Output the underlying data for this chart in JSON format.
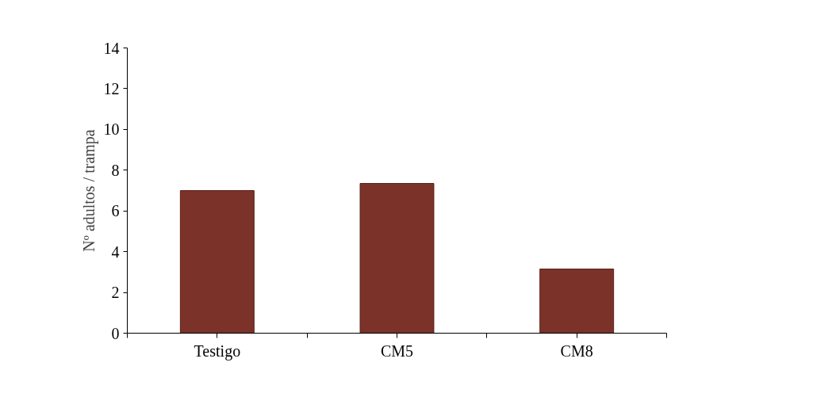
{
  "chart_data": {
    "type": "bar",
    "ylabel": "Nº adultos / trampa",
    "categories": [
      "Testigo",
      "CM5",
      "CM8"
    ],
    "values": [
      7.0,
      7.35,
      3.15
    ],
    "color": "#7b3229",
    "ylim": [
      0,
      14
    ],
    "yticks": [
      0,
      2,
      4,
      6,
      8,
      10,
      12,
      14
    ],
    "grid": false
  }
}
